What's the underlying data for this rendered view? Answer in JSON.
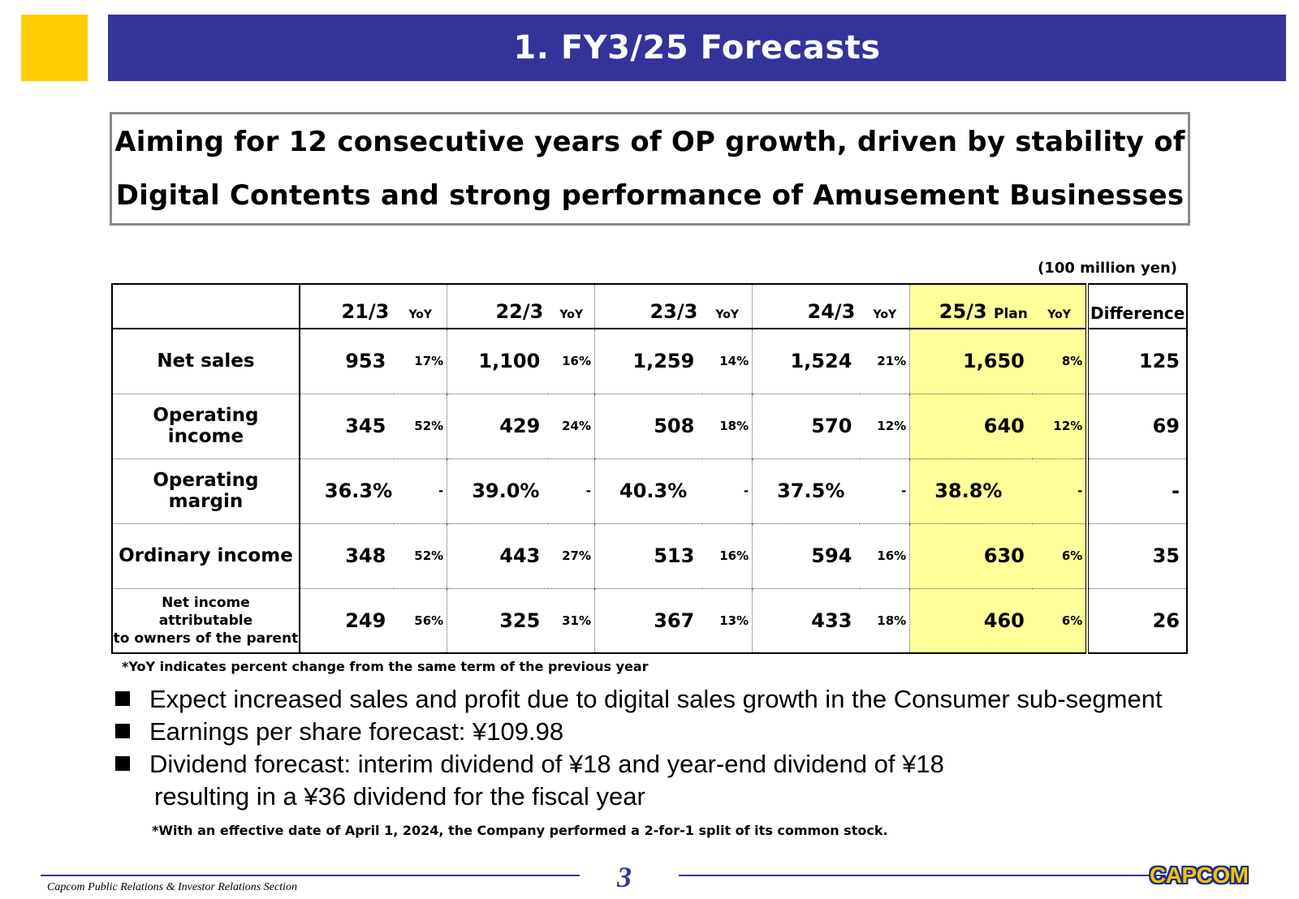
{
  "title": "1. FY3/25 Forecasts",
  "headline": {
    "line1": "Aiming for 12 consecutive years of OP growth, driven by stability of",
    "line2": "Digital Contents and strong performance of Amusement Businesses"
  },
  "unit": "(100 million yen)",
  "table": {
    "headers": {
      "years": [
        "21/3",
        "22/3",
        "23/3",
        "24/3",
        "25/3"
      ],
      "plan_word": "Plan",
      "yoy": "YoY",
      "difference": "Difference"
    },
    "rows": [
      {
        "label": "Net sales",
        "values": [
          "953",
          "1,100",
          "1,259",
          "1,524",
          "1,650"
        ],
        "yoy": [
          "17%",
          "16%",
          "14%",
          "21%",
          "8%"
        ],
        "difference": "125"
      },
      {
        "label": "Operating income",
        "values": [
          "345",
          "429",
          "508",
          "570",
          "640"
        ],
        "yoy": [
          "52%",
          "24%",
          "18%",
          "12%",
          "12%"
        ],
        "difference": "69"
      },
      {
        "label": "Operating margin",
        "values": [
          "36.3%",
          "39.0%",
          "40.3%",
          "37.5%",
          "38.8%"
        ],
        "yoy": [
          "-",
          "-",
          "-",
          "-",
          "-"
        ],
        "difference": "-"
      },
      {
        "label": "Ordinary income",
        "values": [
          "348",
          "443",
          "513",
          "594",
          "630"
        ],
        "yoy": [
          "52%",
          "27%",
          "16%",
          "16%",
          "6%"
        ],
        "difference": "35"
      },
      {
        "label_line1": "Net income attributable",
        "label_line2": "to owners of the parent",
        "values": [
          "249",
          "325",
          "367",
          "433",
          "460"
        ],
        "yoy": [
          "56%",
          "31%",
          "13%",
          "18%",
          "6%"
        ],
        "difference": "26"
      }
    ]
  },
  "footnote_yoy": "*YoY indicates percent change from the same term of the previous year",
  "bullets": [
    "Expect increased sales and profit due to digital sales growth in the Consumer sub-segment",
    "Earnings per share forecast: ¥109.98",
    "Dividend forecast: interim dividend of ¥18 and year-end dividend of ¥18"
  ],
  "bullet_continuation": "resulting in a ¥36 dividend for the fiscal year",
  "footnote_split": "*With an effective date of April 1, 2024, the Company performed a 2-for-1 split of its common stock.",
  "footer": {
    "section": "Capcom Public Relations & Investor Relations Section",
    "page_number": "3",
    "logo": "CAPCOM"
  },
  "colors": {
    "title_bar": "#333399",
    "accent_square": "#FFCC00",
    "plan_highlight": "#FFFF99"
  }
}
